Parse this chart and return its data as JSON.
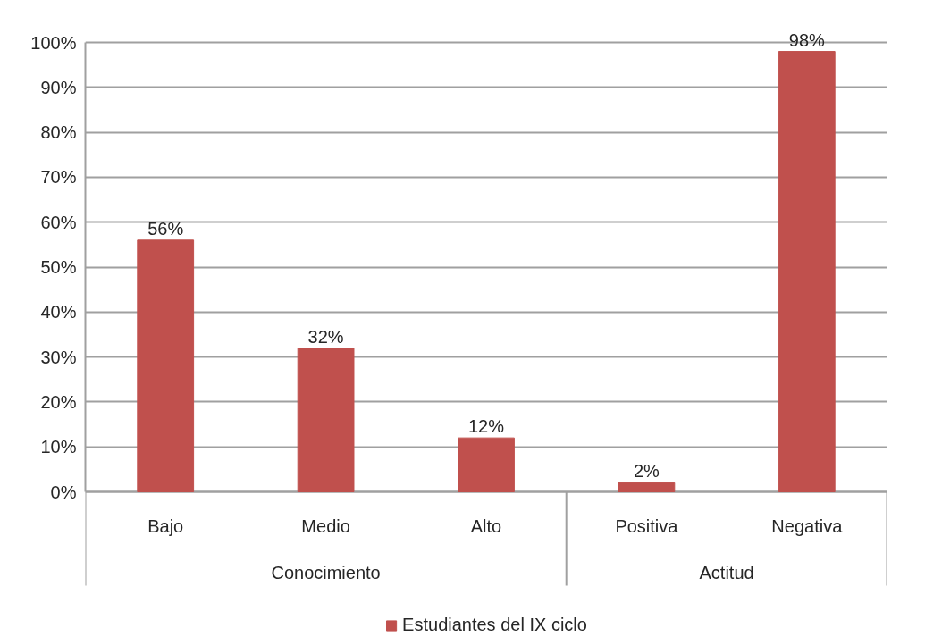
{
  "chart_data": {
    "type": "bar",
    "categories": [
      "Bajo",
      "Medio",
      "Alto",
      "Positiva",
      "Negativa"
    ],
    "series": [
      {
        "name": "Estudiantes del IX ciclo",
        "color": "#c0504d",
        "values": [
          56,
          32,
          12,
          2,
          98
        ],
        "value_labels": [
          "56%",
          "32%",
          "12%",
          "2%",
          "98%"
        ]
      }
    ],
    "ylim": [
      0,
      100
    ],
    "yticks": [
      {
        "value": 0,
        "label": "0%"
      },
      {
        "value": 10,
        "label": "10%"
      },
      {
        "value": 20,
        "label": "20%"
      },
      {
        "value": 30,
        "label": "30%"
      },
      {
        "value": 40,
        "label": "40%"
      },
      {
        "value": 50,
        "label": "50%"
      },
      {
        "value": 60,
        "label": "60%"
      },
      {
        "value": 70,
        "label": "70%"
      },
      {
        "value": 80,
        "label": "80%"
      },
      {
        "value": 90,
        "label": "90%"
      },
      {
        "value": 100,
        "label": "100%"
      }
    ],
    "grid": "y",
    "legend": "bottom",
    "annotations": [
      "Conocimiento",
      "Actitud"
    ]
  }
}
